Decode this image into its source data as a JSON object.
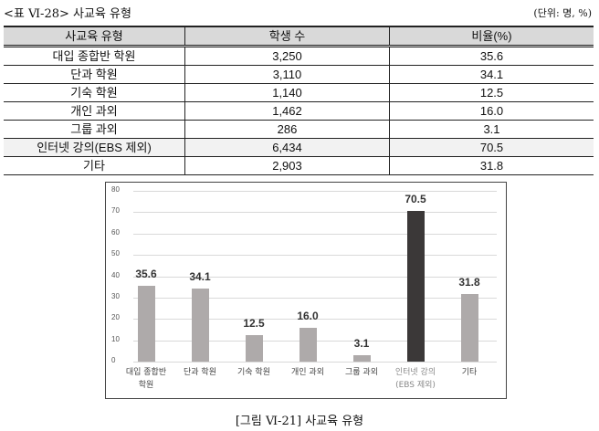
{
  "table": {
    "title": "<표 Ⅵ-28> 사교육 유형",
    "unit": "(단위: 명, %)",
    "headers": [
      "사교육 유형",
      "학생 수",
      "비율(%)"
    ],
    "rows": [
      {
        "type": "대입 종합반 학원",
        "students": "3,250",
        "ratio": "35.6"
      },
      {
        "type": "단과 학원",
        "students": "3,110",
        "ratio": "34.1"
      },
      {
        "type": "기숙 학원",
        "students": "1,140",
        "ratio": "12.5"
      },
      {
        "type": "개인 과외",
        "students": "1,462",
        "ratio": "16.0"
      },
      {
        "type": "그룹 과외",
        "students": "286",
        "ratio": "3.1"
      },
      {
        "type": "인터넷 강의(EBS 제외)",
        "students": "6,434",
        "ratio": "70.5"
      },
      {
        "type": "기타",
        "students": "2,903",
        "ratio": "31.8"
      }
    ]
  },
  "chart_data": {
    "type": "bar",
    "title": "[그림 Ⅵ-21] 사교육 유형",
    "categories": [
      "대입 종합반 학원",
      "단과 학원",
      "기숙 학원",
      "개인 과외",
      "그룹 과외",
      "인터넷 강의 (EBS 제외)",
      "기타"
    ],
    "values": [
      35.6,
      34.1,
      12.5,
      16.0,
      3.1,
      70.5,
      31.8
    ],
    "value_labels": [
      "35.6",
      "34.1",
      "12.5",
      "16.0",
      "3.1",
      "70.5",
      "31.8"
    ],
    "xlabel": "",
    "ylabel": "",
    "ylim": [
      0,
      80
    ],
    "yticks": [
      "0",
      "10",
      "20",
      "30",
      "40",
      "50",
      "60",
      "70",
      "80"
    ],
    "grid": true,
    "colors": {
      "default": "#aeaaaa",
      "highlight": "#3b3838"
    },
    "highlight_index": 5,
    "legend": null
  },
  "chart_labels": {
    "x": [
      [
        "대입 종합반",
        "학원"
      ],
      [
        "단과 학원",
        ""
      ],
      [
        "기숙 학원",
        ""
      ],
      [
        "개인 과외",
        ""
      ],
      [
        "그룹 과외",
        ""
      ],
      [
        "인터넷 강의",
        "(EBS 제외)"
      ],
      [
        "기타",
        ""
      ]
    ]
  },
  "caption": "[그림 Ⅵ-21] 사교육 유형"
}
